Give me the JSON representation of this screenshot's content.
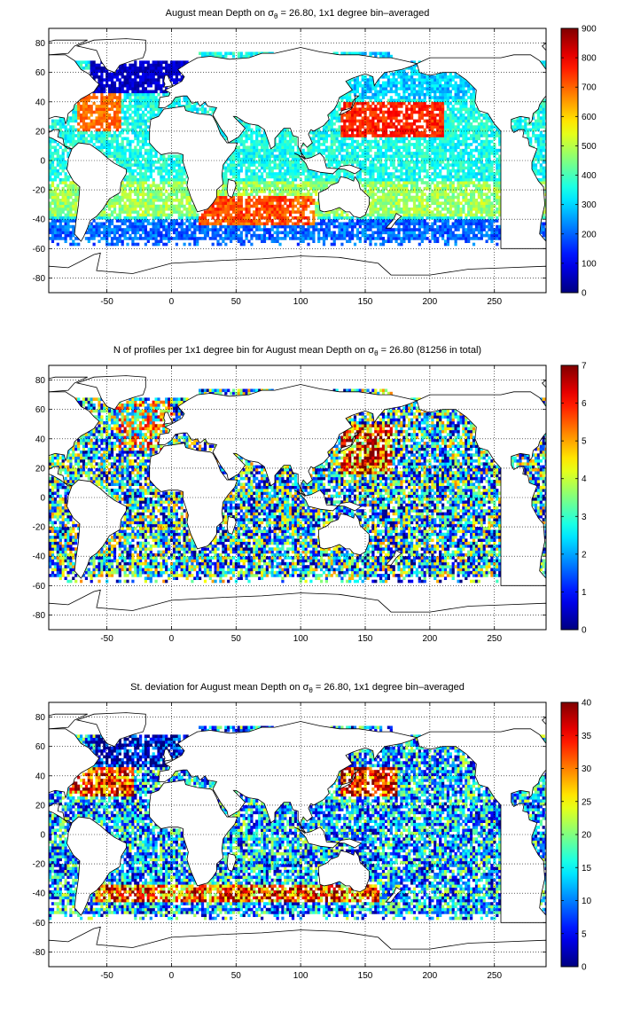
{
  "figure": {
    "colormap": "jet",
    "colors": {
      "jet_stops": [
        "#00008f",
        "#0000ff",
        "#00ffff",
        "#ffff00",
        "#ff0000",
        "#800000"
      ],
      "land_fill": "#ffffff",
      "coastline": "#000000",
      "grid": "#000000"
    }
  },
  "chart_data": [
    {
      "type": "heatmap",
      "title_pre": "August mean Depth on ",
      "title_sigma": "σ",
      "title_sub": "θ",
      "title_post": " = 26.80, 1x1 degree bin–averaged",
      "xlabel": "",
      "ylabel": "",
      "xlim": [
        -95,
        290
      ],
      "ylim": [
        -90,
        90
      ],
      "x_ticks": [
        "-50",
        "0",
        "50",
        "100",
        "150",
        "200",
        "250"
      ],
      "y_ticks": [
        "80",
        "60",
        "40",
        "20",
        "0",
        "-20",
        "-40",
        "-60",
        "-80"
      ],
      "grid": true,
      "colorbar": {
        "min": 0,
        "max": 900,
        "ticks": [
          "900",
          "800",
          "700",
          "600",
          "500",
          "400",
          "300",
          "200",
          "100",
          "0"
        ]
      },
      "field": "depth",
      "description_values": {
        "north_atlantic_subpolar": 50,
        "subtropical_gyres": 750,
        "equatorial": 350,
        "southern_edge": 200
      }
    },
    {
      "type": "heatmap",
      "title_pre": "N of profiles per 1x1 degree bin for August mean Depth on ",
      "title_sigma": "σ",
      "title_sub": "θ",
      "title_post": " = 26.80 (81256 in total)",
      "xlabel": "",
      "ylabel": "",
      "xlim": [
        -95,
        290
      ],
      "ylim": [
        -90,
        90
      ],
      "x_ticks": [
        "-50",
        "0",
        "50",
        "100",
        "150",
        "200",
        "250"
      ],
      "y_ticks": [
        "80",
        "60",
        "40",
        "20",
        "0",
        "-20",
        "-40",
        "-60",
        "-80"
      ],
      "grid": true,
      "colorbar": {
        "min": 0,
        "max": 7,
        "ticks": [
          "7",
          "6",
          "5",
          "4",
          "3",
          "2",
          "1",
          "0"
        ]
      },
      "field": "count",
      "total_profiles": 81256
    },
    {
      "type": "heatmap",
      "title_pre": "St. deviation for August mean Depth on ",
      "title_sigma": "σ",
      "title_sub": "θ",
      "title_post": " = 26.80, 1x1 degree bin–averaged",
      "xlabel": "",
      "ylabel": "",
      "xlim": [
        -95,
        290
      ],
      "ylim": [
        -90,
        90
      ],
      "x_ticks": [
        "-50",
        "0",
        "50",
        "100",
        "150",
        "200",
        "250"
      ],
      "y_ticks": [
        "80",
        "60",
        "40",
        "20",
        "0",
        "-20",
        "-40",
        "-60",
        "-80"
      ],
      "grid": true,
      "colorbar": {
        "min": 0,
        "max": 40,
        "ticks": [
          "40",
          "35",
          "30",
          "25",
          "20",
          "15",
          "10",
          "5",
          "0"
        ]
      },
      "field": "std"
    }
  ]
}
